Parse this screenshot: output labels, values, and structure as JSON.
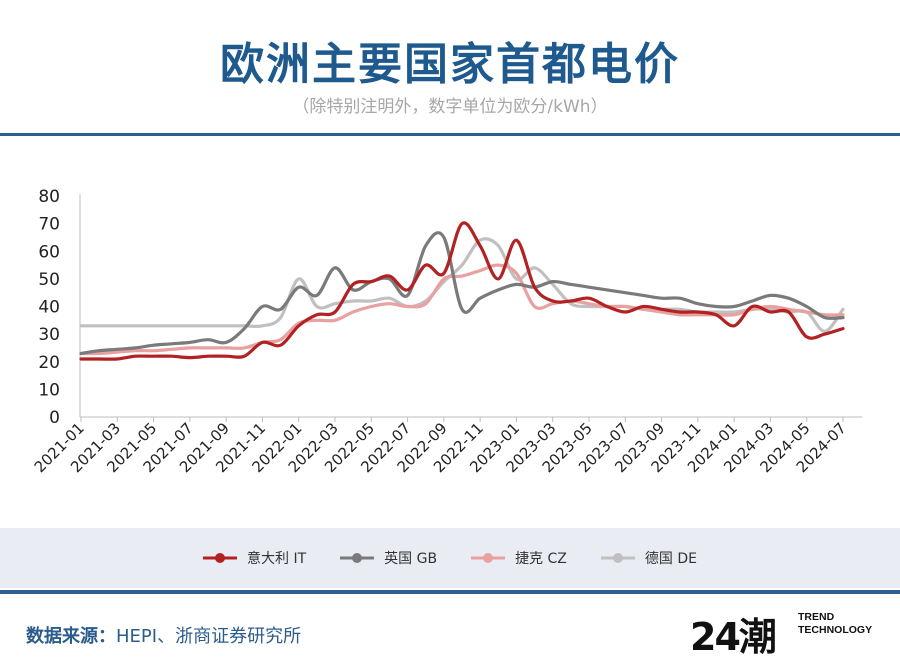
{
  "header": {
    "title": "欧洲主要国家首都电价",
    "subtitle": "（除特别注明外，数字单位为欧分/kWh）"
  },
  "footer": {
    "source_label": "数据来源：",
    "source_text": "HEPI、浙商证券研究所",
    "brand_mark": "24潮",
    "brand_line1": "TREND",
    "brand_line2": "TECHNOLOGY"
  },
  "chart_data": {
    "type": "line",
    "title": "",
    "xlabel": "",
    "ylabel": "",
    "ylim": [
      0,
      80
    ],
    "yticks": [
      0,
      10,
      20,
      30,
      40,
      50,
      60,
      70,
      80
    ],
    "grid": false,
    "legend_position": "bottom",
    "x": [
      "2021-01",
      "2021-02",
      "2021-03",
      "2021-04",
      "2021-05",
      "2021-06",
      "2021-07",
      "2021-08",
      "2021-09",
      "2021-10",
      "2021-11",
      "2021-12",
      "2022-01",
      "2022-02",
      "2022-03",
      "2022-04",
      "2022-05",
      "2022-06",
      "2022-07",
      "2022-08",
      "2022-09",
      "2022-10",
      "2022-11",
      "2022-12",
      "2023-01",
      "2023-02",
      "2023-03",
      "2023-04",
      "2023-05",
      "2023-06",
      "2023-07",
      "2023-08",
      "2023-09",
      "2023-10",
      "2023-11",
      "2023-12",
      "2024-01",
      "2024-02",
      "2024-03",
      "2024-04",
      "2024-05",
      "2024-06",
      "2024-07"
    ],
    "x_tick_labels": [
      "2021-01",
      "2021-03",
      "2021-05",
      "2021-07",
      "2021-09",
      "2021-11",
      "2022-01",
      "2022-03",
      "2022-05",
      "2022-07",
      "2022-09",
      "2022-11",
      "2023-01",
      "2023-03",
      "2023-05",
      "2023-07",
      "2023-09",
      "2023-11",
      "2024-01",
      "2024-03",
      "2024-05",
      "2024-07"
    ],
    "series": [
      {
        "name": "意大利 IT",
        "color": "#b22222",
        "values": [
          21,
          21,
          21,
          22,
          22,
          22,
          21.5,
          22,
          22,
          22,
          27,
          26,
          33,
          37,
          38,
          48,
          49,
          51,
          46,
          55,
          52,
          70,
          62,
          50,
          64,
          47,
          42,
          42,
          43,
          40,
          38,
          40,
          39,
          38,
          38,
          37,
          33,
          40,
          38,
          38,
          29,
          30,
          32
        ]
      },
      {
        "name": "英国 GB",
        "color": "#7a7a7a",
        "values": [
          23,
          24,
          24.5,
          25,
          26,
          26.5,
          27,
          28,
          27,
          32,
          40,
          39,
          47,
          44,
          54,
          46,
          49,
          50,
          44,
          62,
          65,
          39,
          43,
          46,
          48,
          47,
          49,
          48,
          47,
          46,
          45,
          44,
          43,
          43,
          41,
          40,
          40,
          42,
          44,
          43,
          40,
          36,
          36
        ]
      },
      {
        "name": "捷克 CZ",
        "color": "#e8a0a0",
        "values": [
          23,
          23,
          23.5,
          24,
          24,
          24.5,
          25,
          25,
          25,
          25,
          27,
          28,
          34,
          35,
          35,
          38,
          40,
          41,
          40,
          41,
          50,
          51,
          53,
          55,
          52,
          40,
          41,
          42,
          41,
          40,
          40,
          39,
          38,
          37,
          37,
          37,
          37,
          39,
          40,
          39,
          38,
          37,
          37
        ]
      },
      {
        "name": "德国 DE",
        "color": "#c0c0c0",
        "values": [
          33,
          33,
          33,
          33,
          33,
          33,
          33,
          33,
          33,
          33,
          33,
          36,
          50,
          40,
          41,
          42,
          42,
          43,
          40,
          42,
          49,
          55,
          64,
          62,
          50,
          54,
          48,
          41,
          40,
          40,
          40,
          39,
          39,
          39,
          38,
          38,
          38,
          39,
          39,
          38,
          38,
          31,
          39
        ]
      }
    ]
  }
}
